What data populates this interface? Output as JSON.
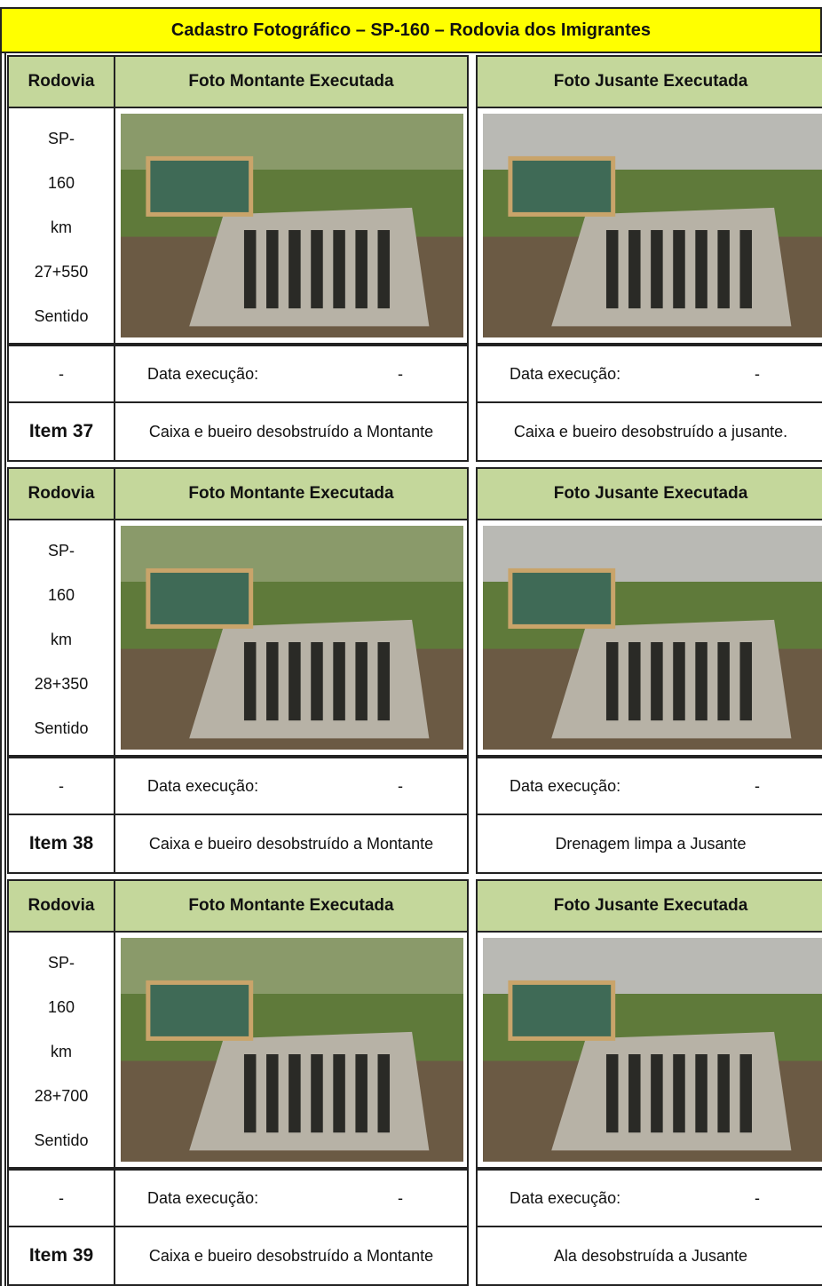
{
  "title": "Cadastro Fotográfico – SP-160 – Rodovia dos Imigrantes",
  "sections": [
    {
      "header": {
        "rodovia": "Rodovia",
        "montante": "Foto Montante Executada",
        "jusante": "Foto Jusante Executada"
      },
      "location": [
        "SP-",
        "160",
        "km",
        "27+550",
        "Sentido"
      ],
      "sentido_value": "-",
      "montante_date": {
        "label": "Data execução:",
        "value": "-"
      },
      "jusante_date": {
        "label": "Data execução:",
        "value": "-"
      },
      "item": "Item 37",
      "montante_caption": "Caixa e bueiro desobstruído a Montante",
      "jusante_caption": "Caixa e bueiro desobstruído a jusante."
    },
    {
      "header": {
        "rodovia": "Rodovia",
        "montante": "Foto Montante Executada",
        "jusante": "Foto Jusante Executada"
      },
      "location": [
        "SP-",
        "160",
        "km",
        "28+350",
        "Sentido"
      ],
      "sentido_value": "-",
      "montante_date": {
        "label": "Data execução:",
        "value": "-"
      },
      "jusante_date": {
        "label": "Data execução:",
        "value": "-"
      },
      "item": "Item 38",
      "montante_caption": "Caixa e bueiro desobstruído a Montante",
      "jusante_caption": "Drenagem limpa a Jusante"
    },
    {
      "header": {
        "rodovia": "Rodovia",
        "montante": "Foto Montante Executada",
        "jusante": "Foto Jusante Executada"
      },
      "location": [
        "SP-",
        "160",
        "km",
        "28+700",
        "Sentido"
      ],
      "sentido_value": "-",
      "montante_date": {
        "label": "Data execução:",
        "value": "-"
      },
      "jusante_date": {
        "label": "Data execução:",
        "value": "-"
      },
      "item": "Item 39",
      "montante_caption": "Caixa e bueiro desobstruído a Montante",
      "jusante_caption": "Ala desobstruída a Jusante"
    }
  ]
}
